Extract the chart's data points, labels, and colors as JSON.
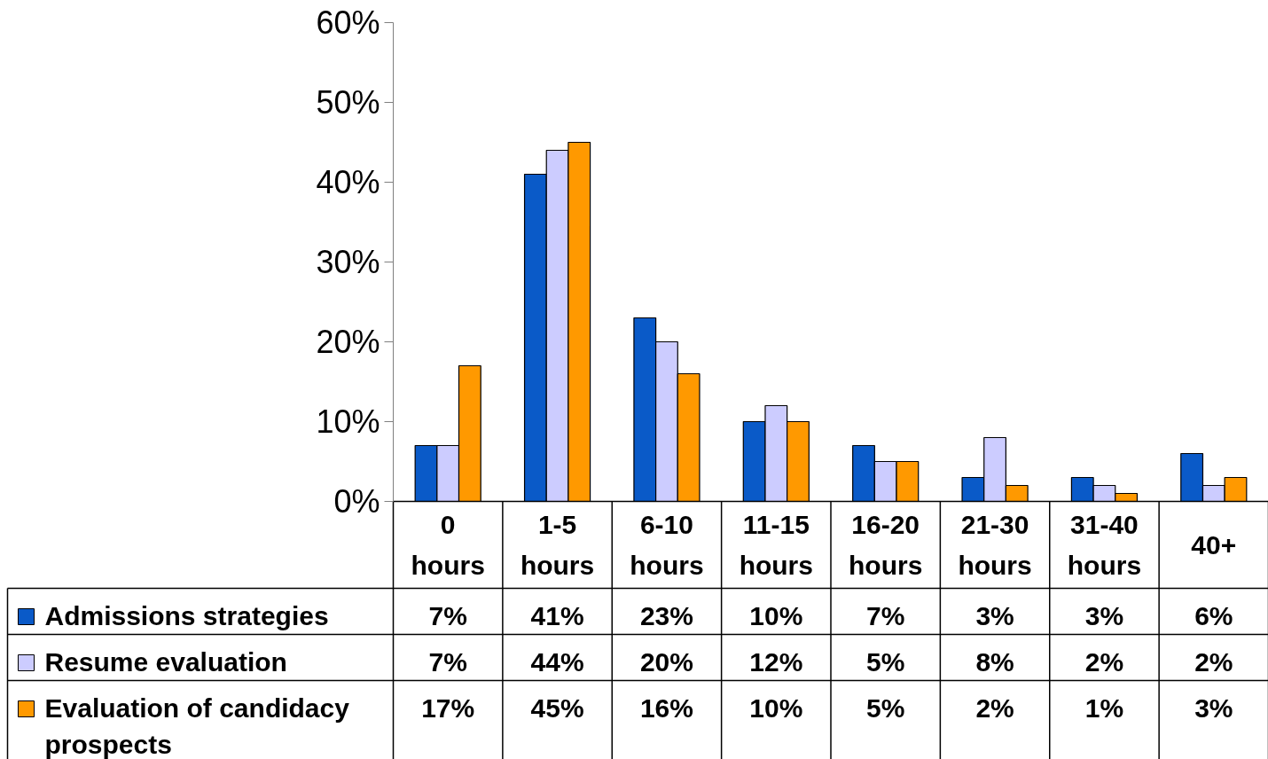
{
  "chart_data": {
    "type": "bar",
    "categories": [
      "0 hours",
      "1-5 hours",
      "6-10 hours",
      "11-15 hours",
      "16-20 hours",
      "21-30 hours",
      "31-40 hours",
      "40+"
    ],
    "series": [
      {
        "name": "Admissions strategies",
        "color": "#0a5ac8",
        "values": [
          7,
          41,
          23,
          10,
          7,
          3,
          3,
          6
        ],
        "value_labels": [
          "7%",
          "41%",
          "23%",
          "10%",
          "7%",
          "3%",
          "3%",
          "6%"
        ]
      },
      {
        "name": "Resume evaluation",
        "color": "#ccccff",
        "values": [
          7,
          44,
          20,
          12,
          5,
          8,
          2,
          2
        ],
        "value_labels": [
          "7%",
          "44%",
          "20%",
          "12%",
          "5%",
          "8%",
          "2%",
          "2%"
        ]
      },
      {
        "name": "Evaluation of candidacy prospects",
        "color": "#ff9900",
        "values": [
          17,
          45,
          16,
          10,
          5,
          2,
          1,
          3
        ],
        "value_labels": [
          "17%",
          "45%",
          "16%",
          "10%",
          "5%",
          "2%",
          "1%",
          "3%"
        ]
      }
    ],
    "ylim": [
      0,
      60
    ],
    "yticks": [
      {
        "value": 0,
        "label": "0%"
      },
      {
        "value": 10,
        "label": "10%"
      },
      {
        "value": 20,
        "label": "20%"
      },
      {
        "value": 30,
        "label": "30%"
      },
      {
        "value": 40,
        "label": "40%"
      },
      {
        "value": 50,
        "label": "50%"
      },
      {
        "value": 60,
        "label": "60%"
      }
    ],
    "grid": false,
    "legend": "bottom left"
  }
}
